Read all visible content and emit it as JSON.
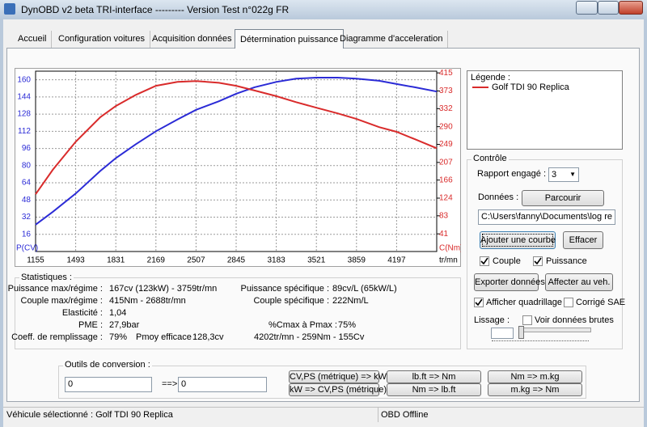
{
  "window": {
    "title": "DynOBD v2 beta TRI-interface --------- Version Test n°022g FR"
  },
  "tabs": [
    {
      "label": "Accueil",
      "selected": false
    },
    {
      "label": "Configuration voitures",
      "selected": false
    },
    {
      "label": "Acquisition données",
      "selected": false
    },
    {
      "label": "Détermination puissance",
      "selected": true
    },
    {
      "label": "Diagramme d'acceleration",
      "selected": false
    }
  ],
  "chart_data": {
    "type": "line",
    "x_label": "tr/mn",
    "y_label": "P(CV)",
    "y2_label": "C(Nm)",
    "x": [
      1155,
      1300,
      1493,
      1700,
      1831,
      2000,
      2169,
      2350,
      2507,
      2700,
      2845,
      3000,
      3183,
      3350,
      3521,
      3700,
      3859,
      4050,
      4197,
      4350,
      4535
    ],
    "series": [
      {
        "color": "#2b2bd6",
        "values": [
          25,
          37,
          54,
          75,
          87,
          100,
          112,
          123,
          132,
          140,
          147,
          153,
          158,
          161,
          162,
          162,
          161,
          159,
          156,
          153,
          149
        ]
      },
      {
        "color": "#d92b2b",
        "axis": "y2",
        "values": [
          133,
          190,
          255,
          312,
          338,
          364,
          385,
          394,
          396,
          392,
          385,
          374,
          361,
          347,
          334,
          321,
          308,
          289,
          278,
          261,
          240
        ]
      }
    ],
    "xlim": [
      1155,
      4535
    ],
    "xticks": [
      1155,
      1493,
      1831,
      2169,
      2507,
      2845,
      3183,
      3521,
      3859,
      4197
    ],
    "ylim": [
      0,
      168
    ],
    "yticks": [
      16,
      32,
      48,
      64,
      80,
      96,
      112,
      128,
      144,
      160
    ],
    "y2lim": [
      0,
      419
    ],
    "y2ticks": [
      41,
      83,
      124,
      166,
      207,
      249,
      290,
      332,
      373,
      415
    ],
    "grid": true
  },
  "legend": {
    "title": "Légende :",
    "entries": [
      {
        "label": "Golf TDI 90 Replica",
        "color": "#d92b2b"
      }
    ]
  },
  "statistics": {
    "title": "Statistiques :",
    "left": [
      {
        "label": "Puissance max/régime :",
        "value": "167cv (123kW) - 3759tr/mn"
      },
      {
        "label": "Couple max/régime :",
        "value": "415Nm - 2688tr/mn"
      },
      {
        "label": "Elasticité :",
        "value": "1,04"
      },
      {
        "label": "PME :",
        "value": "27,9bar"
      },
      {
        "label": "Coeff. de remplissage :",
        "value": "79%"
      }
    ],
    "pmoy": {
      "label": "Pmoy efficace :",
      "value": "128,3cv"
    },
    "right": [
      {
        "label": "Puissance spécifique :",
        "value": "89cv/L (65kW/L)"
      },
      {
        "label": "Couple spécifique :",
        "value": "222Nm/L"
      }
    ],
    "ratio": {
      "label": "%Cmax à Pmax :",
      "value": "75%"
    },
    "point": "4202tr/mn - 259Nm - 155Cv"
  },
  "controls": {
    "title": "Contrôle",
    "gear_label": "Rapport engagé :",
    "gear_value": "3",
    "data_label": "Données :",
    "browse": "Parcourir",
    "path": "C:\\Users\\fanny\\Documents\\log re",
    "add_curve": "Ajouter une courbe",
    "clear": "Effacer",
    "couple": {
      "label": "Couple",
      "checked": true
    },
    "puissance": {
      "label": "Puissance",
      "checked": true
    },
    "export": "Exporter données",
    "assign": "Affecter au veh.",
    "grid": {
      "label": "Afficher quadrillage",
      "checked": true
    },
    "sae": {
      "label": "Corrigé SAE",
      "checked": false
    },
    "smoothing_label": "Lissage :",
    "raw": {
      "label": "Voir données brutes",
      "checked": false
    }
  },
  "conversion": {
    "title": "Outils de conversion :",
    "input": "0",
    "arrow": "==>",
    "output": "0",
    "buttons": [
      "CV,PS (métrique) => kW",
      "kW => CV,PS (métrique)",
      "lb.ft => Nm",
      "Nm => lb.ft",
      "Nm => m.kg",
      "m.kg => Nm"
    ]
  },
  "status": {
    "vehicle": "Véhicule sélectionné : Golf TDI 90 Replica",
    "obd": "OBD Offline"
  }
}
